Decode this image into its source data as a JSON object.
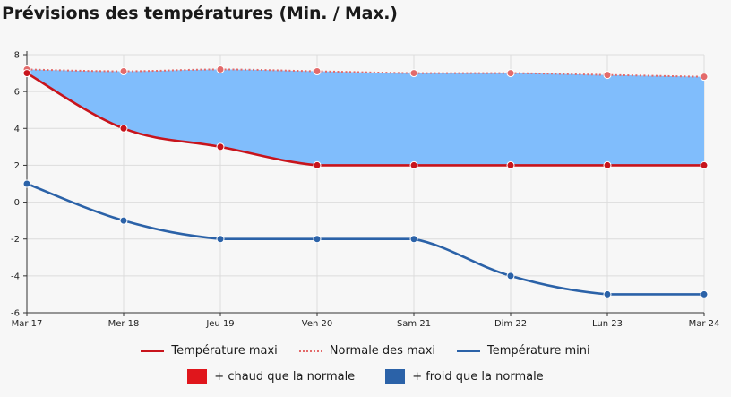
{
  "title": "Prévisions des températures (Min. / Max.)",
  "colors": {
    "max": "#c8141c",
    "normal": "#e36a6a",
    "min": "#2b62a8",
    "cold_fill": "#80bdfc",
    "warm_legend": "#e0161c",
    "cold_legend": "#2b62a8"
  },
  "legend": {
    "max": "Température maxi",
    "normal": "Normale des maxi",
    "min": "Température mini",
    "warm": "+ chaud que la normale",
    "cold": "+ froid que la normale"
  },
  "chart_data": {
    "type": "line",
    "title": "",
    "xlabel": "",
    "ylabel": "",
    "categories": [
      "Mar 17",
      "Mer 18",
      "Jeu 19",
      "Ven 20",
      "Sam 21",
      "Dim 22",
      "Lun 23",
      "Mar 24"
    ],
    "ylim": [
      -6,
      8
    ],
    "yticks": [
      -6,
      -4,
      -2,
      0,
      2,
      4,
      6,
      8
    ],
    "grid": true,
    "legend_position": "bottom",
    "series": [
      {
        "name": "Température maxi",
        "values": [
          7,
          4,
          3,
          2,
          2,
          2,
          2,
          2
        ]
      },
      {
        "name": "Normale des maxi",
        "values": [
          7.2,
          7.1,
          7.2,
          7.1,
          7.0,
          7.0,
          6.9,
          6.8
        ]
      },
      {
        "name": "Température mini",
        "values": [
          1,
          -1,
          -2,
          -2,
          -2,
          -4,
          -5,
          -5
        ]
      }
    ]
  }
}
